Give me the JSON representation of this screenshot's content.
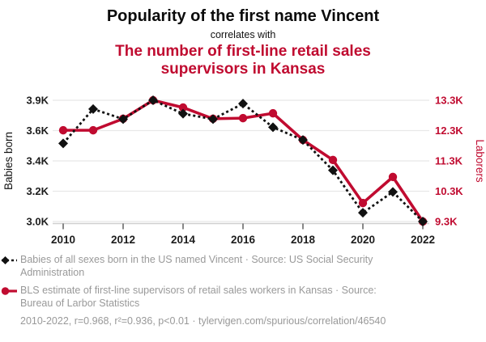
{
  "header": {
    "title": "Popularity of the first name Vincent",
    "subtitle": "correlates with",
    "secondary_title": "The number of first-line retail sales supervisors in Kansas"
  },
  "colors": {
    "accent_red": "#c00b30",
    "series_black": "#111111",
    "muted_text": "#999999",
    "gridline": "#e8e8e8",
    "axis_line": "#cfcfcf",
    "tick_text": "#1d1d1d"
  },
  "chart_data": {
    "type": "line",
    "title": "Popularity of the first name Vincent correlates with The number of first-line retail sales supervisors in Kansas",
    "x": [
      2010,
      2011,
      2012,
      2013,
      2014,
      2015,
      2016,
      2017,
      2018,
      2019,
      2020,
      2021,
      2022
    ],
    "series": [
      {
        "name": "Babies of all sexes born in the US named Vincent",
        "axis": "left",
        "color": "#111111",
        "marker": "diamond",
        "line_style": "dashed",
        "values": [
          3580,
          3835,
          3760,
          3900,
          3800,
          3760,
          3875,
          3700,
          3605,
          3380,
          3065,
          3220,
          3000
        ]
      },
      {
        "name": "BLS estimate of first-line supervisors of retail sales workers in Kansas",
        "axis": "right",
        "color": "#c00b30",
        "marker": "circle",
        "line_style": "solid",
        "values": [
          12310,
          12310,
          12690,
          13300,
          13060,
          12690,
          12710,
          12870,
          11990,
          11330,
          9910,
          10770,
          9300
        ]
      }
    ],
    "left_axis": {
      "label": "Babies born",
      "range": [
        3000,
        3900
      ],
      "tick_labels": [
        "3.0K",
        "3.2K",
        "3.4K",
        "3.6K",
        "3.9K"
      ]
    },
    "right_axis": {
      "label": "Laborers",
      "range": [
        9300,
        13300
      ],
      "tick_labels": [
        "9.3K",
        "10.3K",
        "11.3K",
        "12.3K",
        "13.3K"
      ]
    },
    "x_axis": {
      "range": [
        2010,
        2022
      ],
      "tick_labels": [
        2010,
        2012,
        2014,
        2016,
        2018,
        2020,
        2022
      ]
    },
    "grid": "horizontal",
    "legend_position": "below"
  },
  "legend": {
    "items": [
      {
        "marker": "black-diamond-dashed-line",
        "text": "Babies of all sexes born in the US named Vincent · Source: US Social Security Administration"
      },
      {
        "marker": "red-circle-solid-line",
        "text": "BLS estimate of first-line supervisors of retail sales workers in Kansas · Source: Bureau of Larbor Statistics"
      }
    ]
  },
  "footer": {
    "stats": "2010-2022, r=0.968, r²=0.936, p<0.01 ·",
    "url": "tylervigen.com/spurious/correlation/46540"
  }
}
